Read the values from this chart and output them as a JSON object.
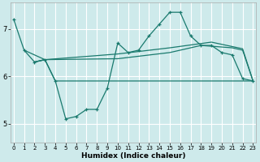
{
  "xlabel": "Humidex (Indice chaleur)",
  "bg_color": "#ceeaeb",
  "line_color": "#1a7a6e",
  "grid_color": "#ffffff",
  "x_ticks": [
    0,
    1,
    2,
    3,
    4,
    5,
    6,
    7,
    8,
    9,
    10,
    11,
    12,
    13,
    14,
    15,
    16,
    17,
    18,
    19,
    20,
    21,
    22,
    23
  ],
  "y_ticks": [
    5,
    6,
    7
  ],
  "ylim": [
    4.6,
    7.55
  ],
  "xlim": [
    -0.3,
    23.3
  ],
  "series1_x": [
    0,
    1,
    2,
    3,
    4,
    5,
    6,
    7,
    8,
    9,
    10,
    11,
    12,
    13,
    14,
    15,
    16,
    17,
    18,
    19,
    20,
    21,
    22,
    23
  ],
  "series1_y": [
    7.2,
    6.55,
    6.3,
    6.35,
    5.9,
    5.1,
    5.15,
    5.3,
    5.3,
    5.75,
    6.7,
    6.5,
    6.55,
    6.85,
    7.1,
    7.35,
    7.35,
    6.85,
    6.65,
    6.65,
    6.5,
    6.45,
    5.95,
    5.9
  ],
  "line2_x": [
    2,
    3,
    4,
    9,
    22,
    23
  ],
  "line2_y": [
    6.3,
    6.35,
    5.9,
    5.9,
    5.9,
    5.9
  ],
  "line3_x": [
    1,
    3,
    10,
    15,
    19,
    22,
    23
  ],
  "line3_y": [
    6.55,
    6.35,
    6.47,
    6.6,
    6.72,
    6.58,
    5.9
  ],
  "line4_x": [
    2,
    3,
    10,
    15,
    18,
    21,
    22,
    23
  ],
  "line4_y": [
    6.3,
    6.35,
    6.37,
    6.5,
    6.65,
    6.6,
    6.55,
    5.9
  ]
}
